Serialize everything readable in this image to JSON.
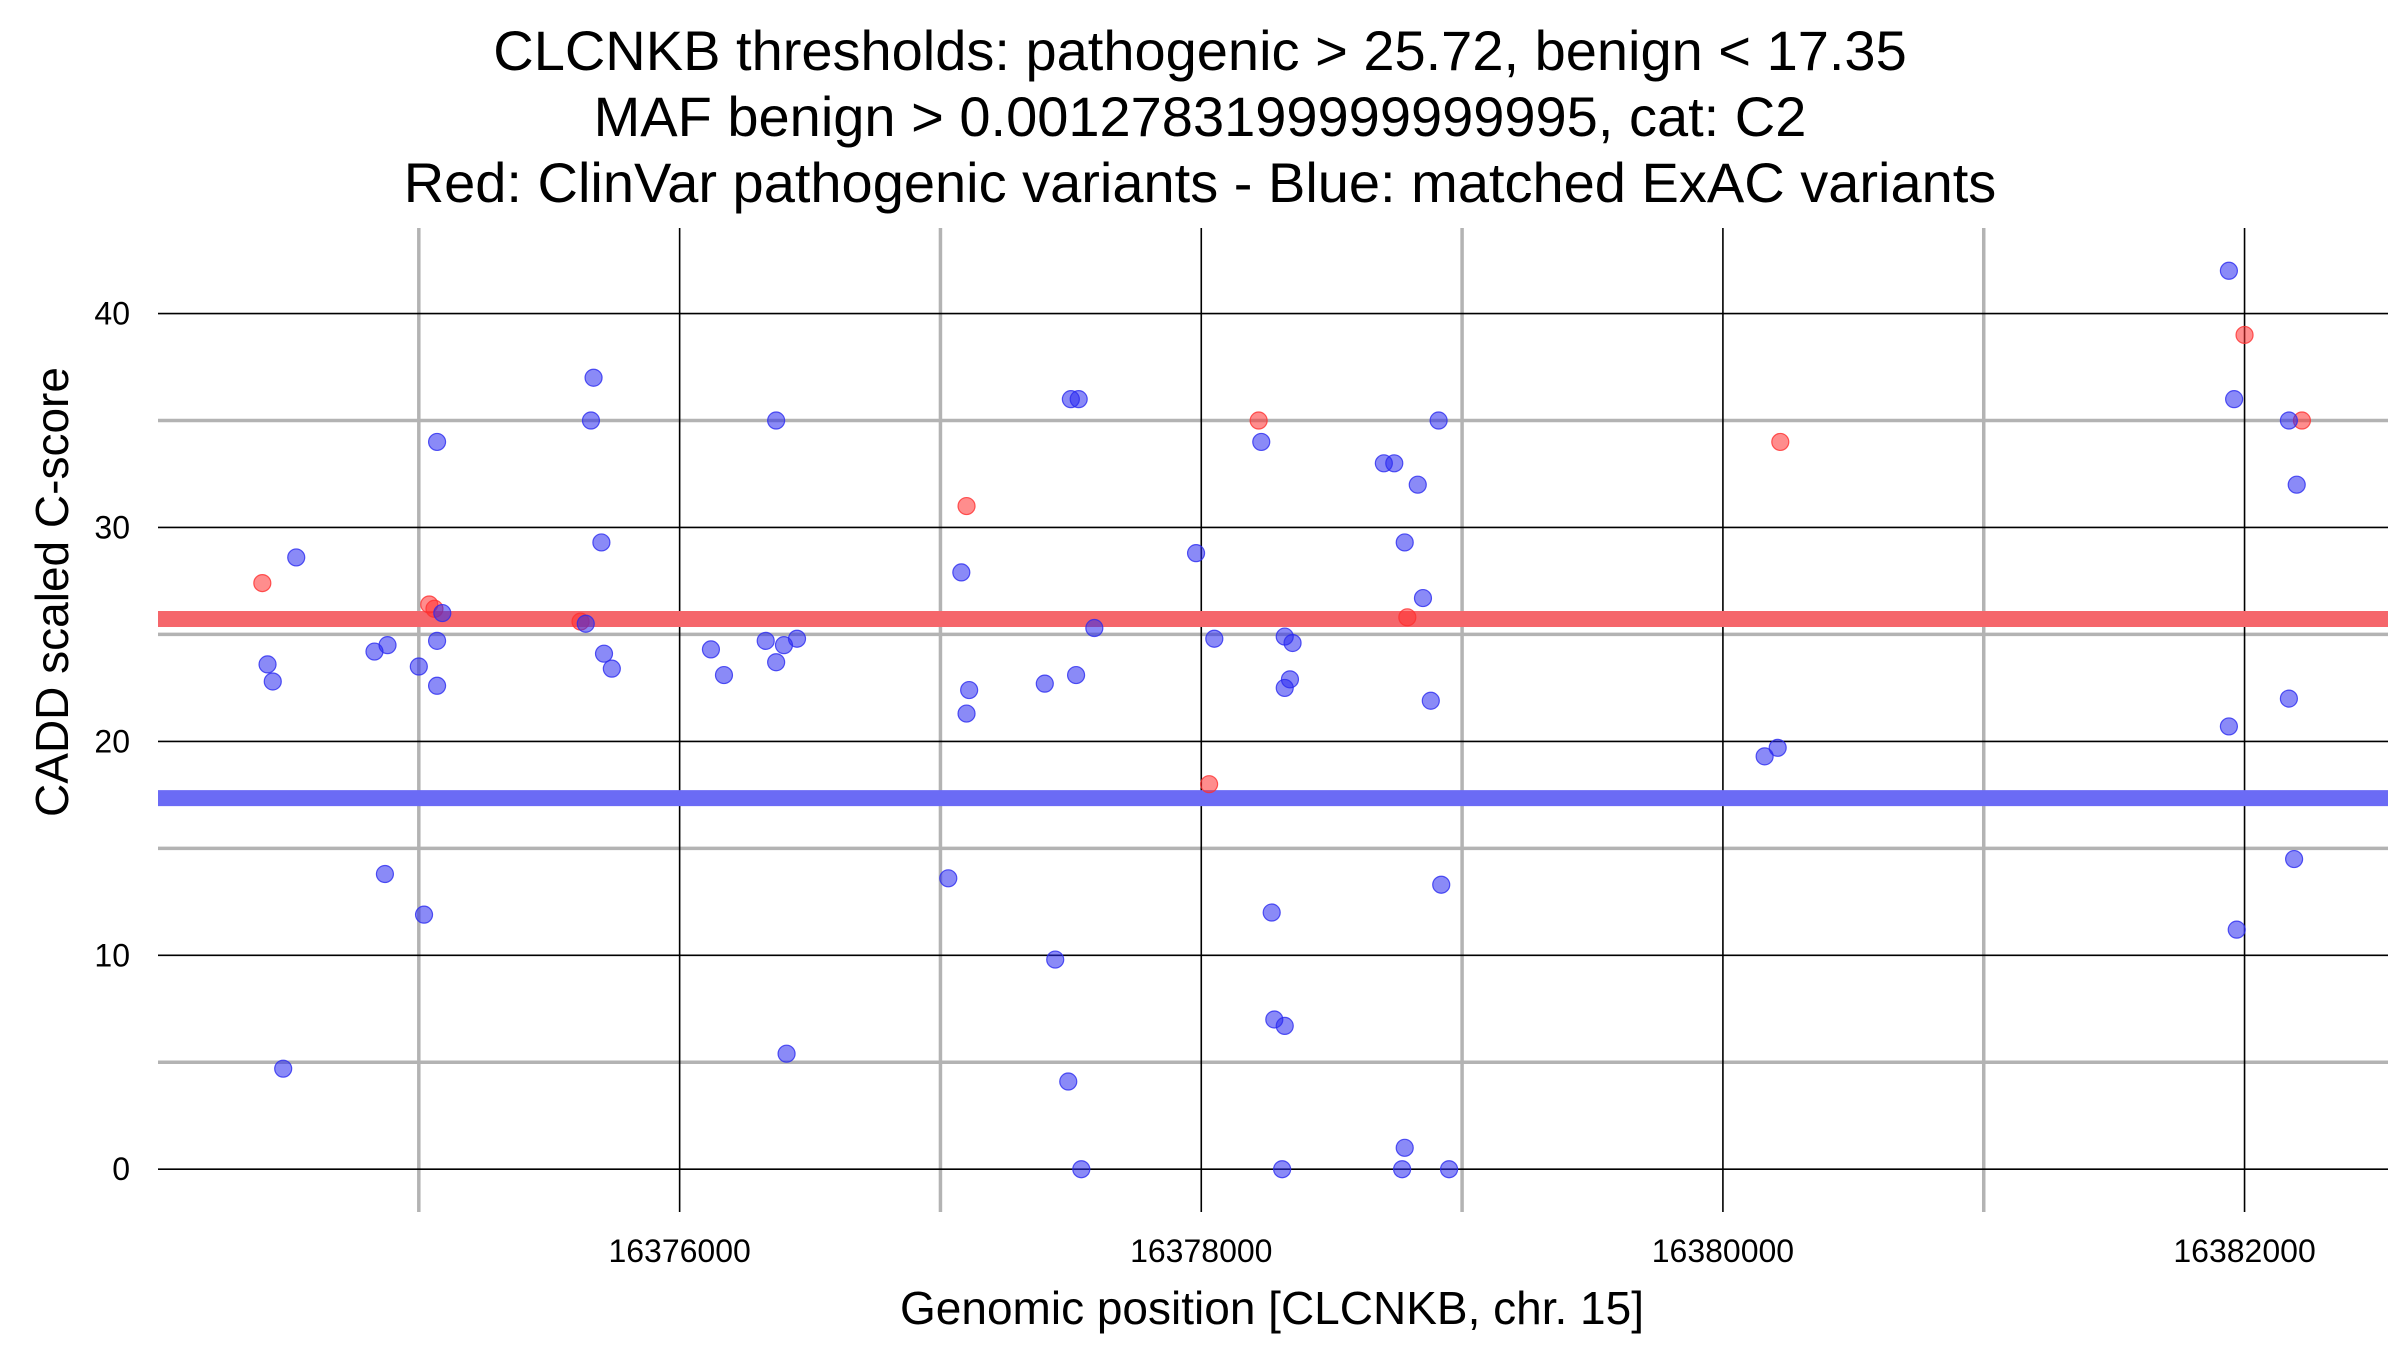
{
  "chart_data": {
    "type": "scatter",
    "title_lines": [
      "CLCNKB thresholds: pathogenic > 25.72, benign < 17.35",
      "MAF benign > 0.0012783199999999995, cat: C2",
      "Red: ClinVar pathogenic variants - Blue: matched ExAC variants"
    ],
    "xlabel": "Genomic position [CLCNKB, chr. 15]",
    "ylabel": "CADD scaled C-score",
    "xlim": [
      16374000,
      16382550
    ],
    "ylim": [
      -2,
      44
    ],
    "x_major_ticks": [
      16376000,
      16378000,
      16380000,
      16382000
    ],
    "x_minor_ticks": [
      16375000,
      16377000,
      16379000,
      16381000
    ],
    "y_major_ticks": [
      0,
      10,
      20,
      30,
      40
    ],
    "y_minor_ticks": [
      5,
      15,
      25,
      35
    ],
    "thresholds": [
      {
        "name": "pathogenic",
        "value": 25.72,
        "color": "#f5666b"
      },
      {
        "name": "benign",
        "value": 17.35,
        "color": "#6b6bf5"
      }
    ],
    "series": [
      {
        "name": "ClinVar pathogenic variants",
        "color": "#ff3030",
        "points": [
          [
            16374400,
            27.4
          ],
          [
            16375040,
            26.4
          ],
          [
            16375060,
            26.2
          ],
          [
            16375620,
            25.6
          ],
          [
            16377100,
            31.0
          ],
          [
            16378030,
            18.0
          ],
          [
            16378220,
            35.0
          ],
          [
            16378790,
            25.8
          ],
          [
            16380220,
            34.0
          ],
          [
            16382000,
            39.0
          ],
          [
            16382220,
            35.0
          ]
        ]
      },
      {
        "name": "matched ExAC variants",
        "color": "#2a2af0",
        "points": [
          [
            16374420,
            23.6
          ],
          [
            16374440,
            22.8
          ],
          [
            16374480,
            4.7
          ],
          [
            16374530,
            28.6
          ],
          [
            16374830,
            24.2
          ],
          [
            16374870,
            13.8
          ],
          [
            16374880,
            24.5
          ],
          [
            16375000,
            23.5
          ],
          [
            16375020,
            11.9
          ],
          [
            16375070,
            34.0
          ],
          [
            16375070,
            22.6
          ],
          [
            16375070,
            24.7
          ],
          [
            16375090,
            26.0
          ],
          [
            16375640,
            25.5
          ],
          [
            16375660,
            35.0
          ],
          [
            16375670,
            37.0
          ],
          [
            16375700,
            29.3
          ],
          [
            16375710,
            24.1
          ],
          [
            16375740,
            23.4
          ],
          [
            16376120,
            24.3
          ],
          [
            16376170,
            23.1
          ],
          [
            16376330,
            24.7
          ],
          [
            16376370,
            23.7
          ],
          [
            16376370,
            35.0
          ],
          [
            16376400,
            24.5
          ],
          [
            16376410,
            5.4
          ],
          [
            16376450,
            24.8
          ],
          [
            16377030,
            13.6
          ],
          [
            16377080,
            27.9
          ],
          [
            16377100,
            21.3
          ],
          [
            16377110,
            22.4
          ],
          [
            16377400,
            22.7
          ],
          [
            16377440,
            9.8
          ],
          [
            16377490,
            4.1
          ],
          [
            16377500,
            36.0
          ],
          [
            16377520,
            23.1
          ],
          [
            16377530,
            36.0
          ],
          [
            16377540,
            0.0
          ],
          [
            16377590,
            25.3
          ],
          [
            16377980,
            28.8
          ],
          [
            16378050,
            24.8
          ],
          [
            16378230,
            34.0
          ],
          [
            16378270,
            12.0
          ],
          [
            16378280,
            7.0
          ],
          [
            16378310,
            0.0
          ],
          [
            16378320,
            6.7
          ],
          [
            16378320,
            24.9
          ],
          [
            16378320,
            22.5
          ],
          [
            16378340,
            22.9
          ],
          [
            16378350,
            24.6
          ],
          [
            16378700,
            33.0
          ],
          [
            16378740,
            33.0
          ],
          [
            16378770,
            0.0
          ],
          [
            16378780,
            29.3
          ],
          [
            16378780,
            1.0
          ],
          [
            16378830,
            32.0
          ],
          [
            16378850,
            26.7
          ],
          [
            16378880,
            21.9
          ],
          [
            16378910,
            35.0
          ],
          [
            16378920,
            13.3
          ],
          [
            16378950,
            0.0
          ],
          [
            16380160,
            19.3
          ],
          [
            16380210,
            19.7
          ],
          [
            16381940,
            42.0
          ],
          [
            16381940,
            20.7
          ],
          [
            16381960,
            36.0
          ],
          [
            16381970,
            11.2
          ],
          [
            16382170,
            35.0
          ],
          [
            16382170,
            22.0
          ],
          [
            16382190,
            14.5
          ],
          [
            16382200,
            32.0
          ]
        ]
      }
    ]
  }
}
